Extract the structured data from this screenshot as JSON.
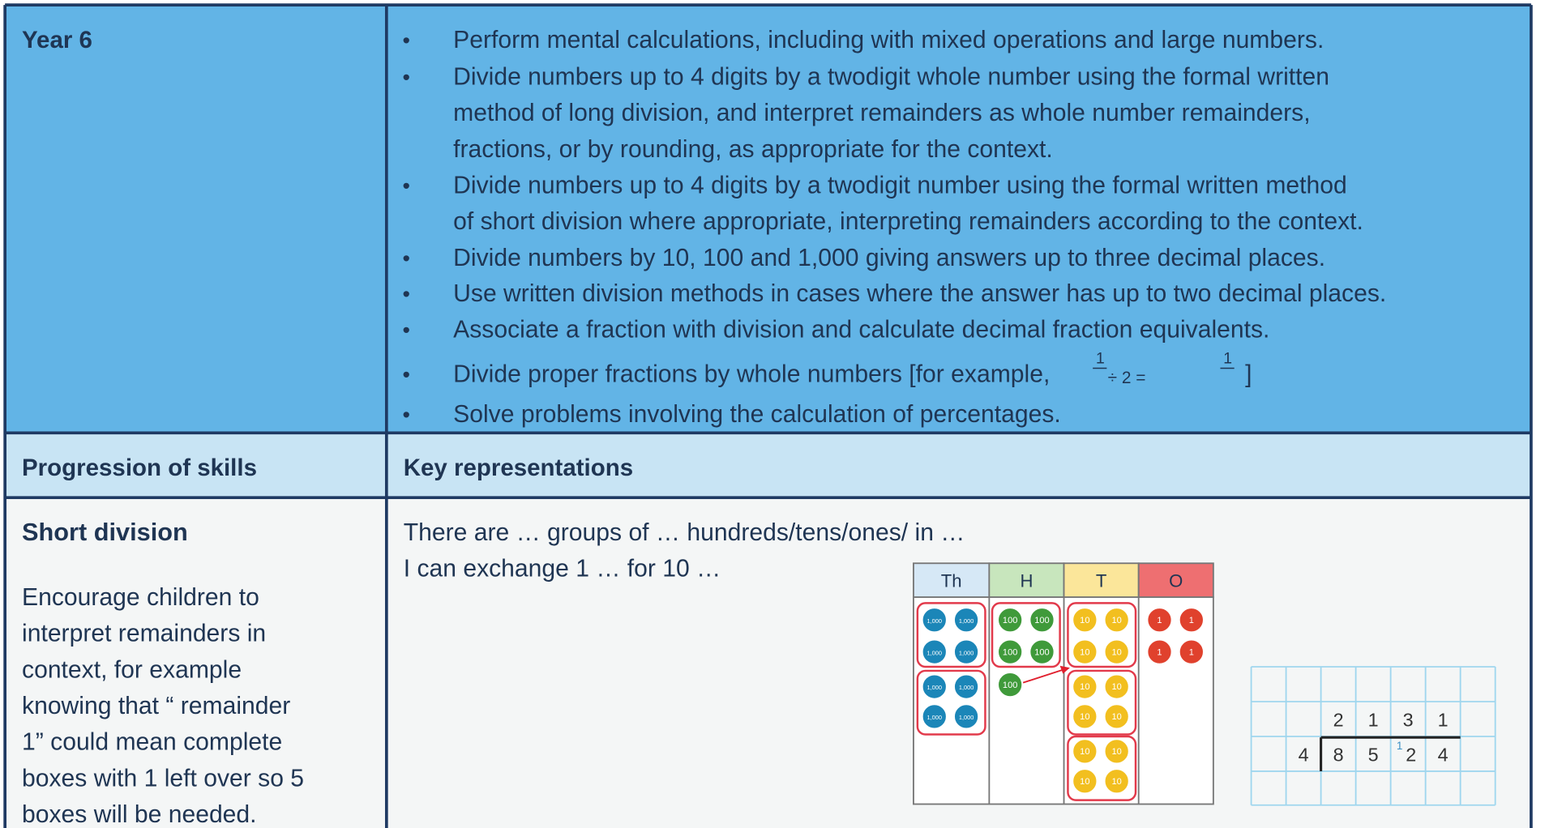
{
  "header": {
    "year": "Year 6",
    "bullets": [
      [
        "Perform mental calculations, including with mixed operations and large numbers."
      ],
      [
        "Divide numbers up to 4 digits by a twodigit whole number using the formal written",
        "method of long division, and interpret remainders as whole number remainders,",
        "fractions, or by rounding, as appropriate for the context."
      ],
      [
        "Divide numbers up to 4 digits by a twodigit number using the formal written method",
        "of short division where appropriate, interpreting remainders according to the context."
      ],
      [
        "Divide numbers by 10, 100 and 1,000 giving answers up to three decimal places."
      ],
      [
        "Use written division methods in cases where the answer has up to two decimal places."
      ],
      [
        "Associate a fraction with division and calculate decimal fraction equivalents."
      ],
      [
        "Divide proper fractions by whole numbers [for example,"
      ],
      [
        "Solve problems involving the calculation of percentages."
      ]
    ],
    "bullet_marker": "•",
    "fraction_example": {
      "numerator_1": "1",
      "operator": "÷ 2 =",
      "numerator_2": "1",
      "close": "]"
    }
  },
  "columns": {
    "left": "Progression of skills",
    "right": "Key representations"
  },
  "section": {
    "title": "Short division",
    "text_lines": [
      "Encourage children to",
      "interpret remainders in",
      "context, for example",
      "knowing that “  remainder",
      "1” could mean   complete",
      "boxes with 1 left over so 5",
      "boxes will be needed."
    ],
    "prompts": [
      "There are … groups of … hundreds/tens/ones/ in …",
      "I can exchange 1 … for 10 …"
    ]
  },
  "place_value": {
    "columns": [
      {
        "heading": "Th",
        "counter": "1,000"
      },
      {
        "heading": "H",
        "counter": "100"
      },
      {
        "heading": "T",
        "counter": "10"
      },
      {
        "heading": "O",
        "counter": "1"
      }
    ]
  },
  "division": {
    "quotient": [
      "2",
      "1",
      "3",
      "1"
    ],
    "divisor": "4",
    "dividend": [
      "8",
      "5",
      "2",
      "4"
    ],
    "carry": "1"
  }
}
